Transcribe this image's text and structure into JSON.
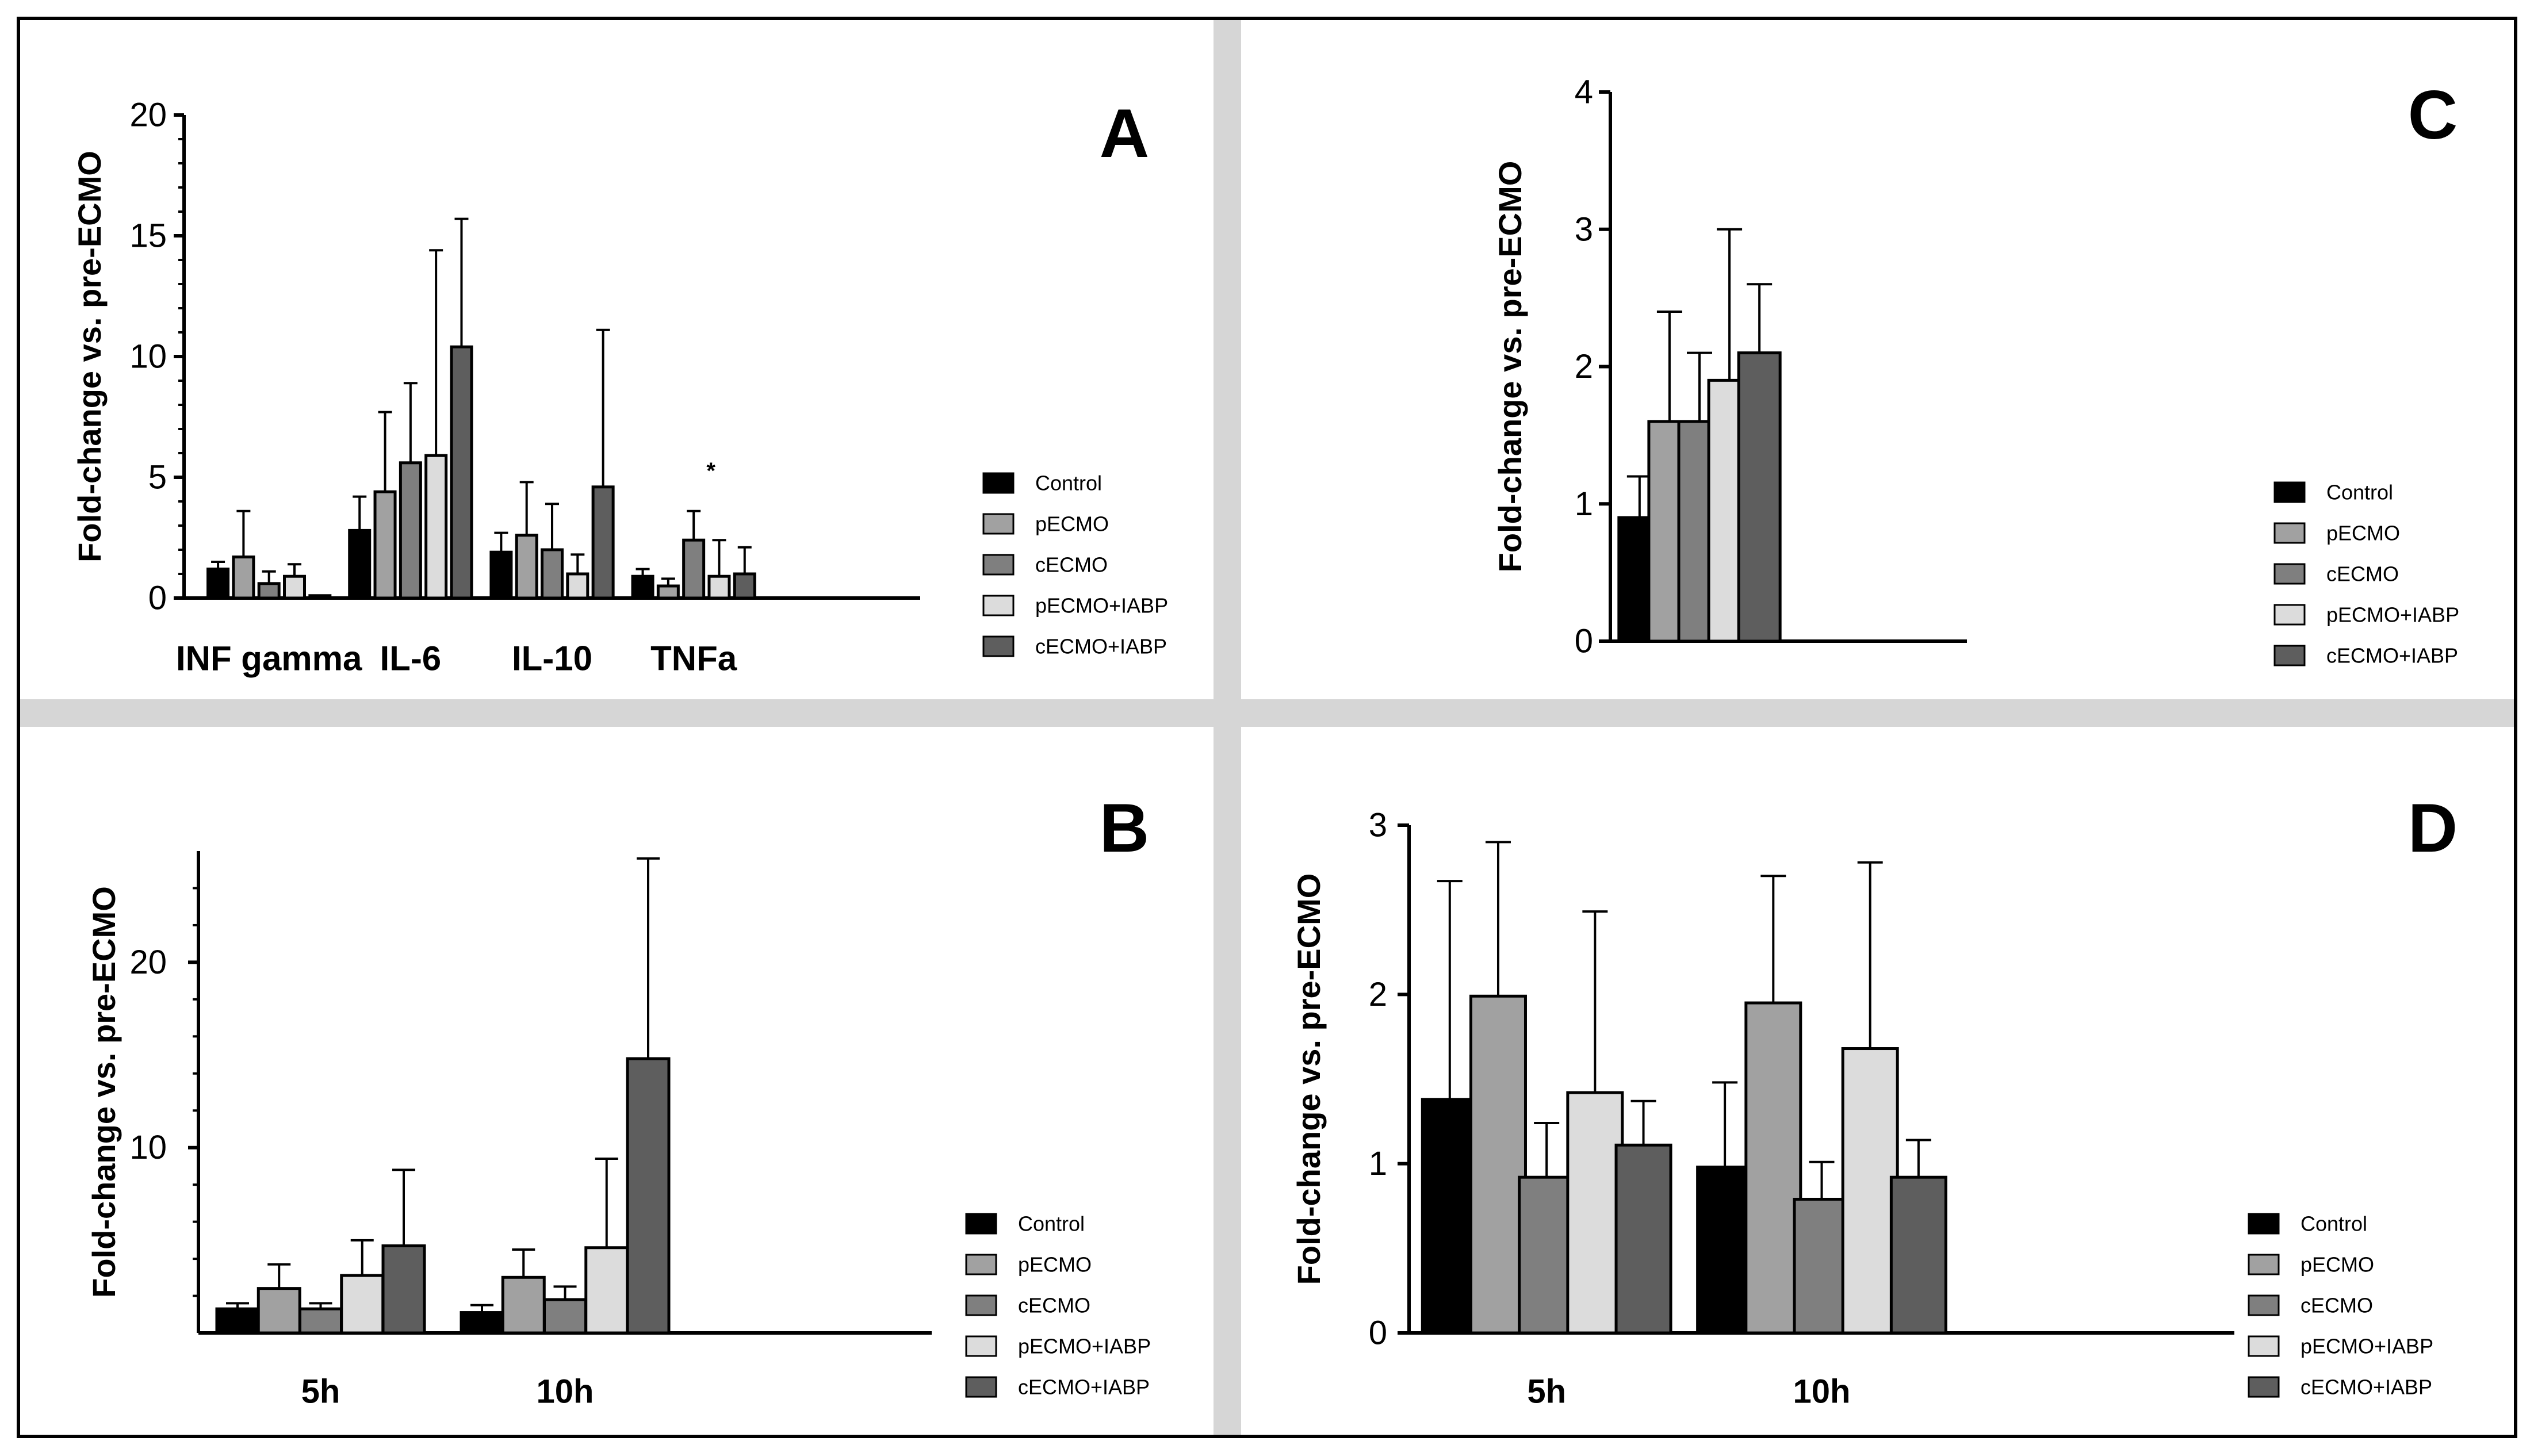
{
  "figure": {
    "series_names": [
      "Control",
      "pECMO",
      "cECMO",
      "pECMO+IABP",
      "cECMO+IABP"
    ],
    "series_colors": [
      "#000000",
      "#a1a1a1",
      "#7f7f7f",
      "#dcdcdc",
      "#5e5e5e"
    ]
  },
  "chart_data": [
    {
      "panel": "A",
      "type": "bar",
      "title": "A",
      "xlabel": "",
      "ylabel": "Fold-change vs. pre-ECMO",
      "ylim": [
        0,
        20
      ],
      "yticks": [
        0,
        5,
        10,
        15,
        20
      ],
      "ytick_labels": [
        "0",
        "5",
        "10",
        "15",
        "20"
      ],
      "categories": [
        "INF gamma",
        "IL-6",
        "IL-10",
        "TNFa"
      ],
      "series": [
        {
          "name": "Control",
          "values": [
            1.2,
            2.8,
            1.9,
            0.9
          ],
          "errors": [
            1.5,
            4.2,
            2.7,
            1.2
          ]
        },
        {
          "name": "pECMO",
          "values": [
            1.7,
            4.4,
            2.6,
            0.5
          ],
          "errors": [
            3.6,
            7.7,
            4.8,
            0.8
          ]
        },
        {
          "name": "cECMO",
          "values": [
            0.6,
            5.6,
            2.0,
            2.4
          ],
          "errors": [
            1.1,
            8.9,
            3.9,
            3.6
          ]
        },
        {
          "name": "pECMO+IABP",
          "values": [
            0.9,
            5.9,
            1.0,
            0.9
          ],
          "errors": [
            1.4,
            14.4,
            1.8,
            2.4
          ]
        },
        {
          "name": "cECMO+IABP",
          "values": [
            0.1,
            10.4,
            4.6,
            1.0
          ],
          "errors": [
            0.1,
            15.7,
            11.1,
            2.1
          ]
        }
      ],
      "annotations": [
        "*"
      ],
      "legend": "right"
    },
    {
      "panel": "B",
      "type": "bar",
      "title": "B",
      "xlabel": "",
      "ylabel": "Fold-change vs. pre-ECMO",
      "ylim": [
        0,
        26
      ],
      "yticks": [
        10,
        20
      ],
      "ytick_labels": [
        "10",
        "20"
      ],
      "categories": [
        "5h",
        "10h"
      ],
      "series": [
        {
          "name": "Control",
          "values": [
            1.3,
            1.1
          ],
          "errors": [
            1.6,
            1.5
          ]
        },
        {
          "name": "pECMO",
          "values": [
            2.4,
            3.0
          ],
          "errors": [
            3.7,
            4.5
          ]
        },
        {
          "name": "cECMO",
          "values": [
            1.3,
            1.8
          ],
          "errors": [
            1.6,
            2.5
          ]
        },
        {
          "name": "pECMO+IABP",
          "values": [
            3.1,
            4.6
          ],
          "errors": [
            5.0,
            9.4
          ]
        },
        {
          "name": "cECMO+IABP",
          "values": [
            4.7,
            14.8
          ],
          "errors": [
            8.8,
            25.6
          ]
        }
      ],
      "legend": "right"
    },
    {
      "panel": "C",
      "type": "bar",
      "title": "C",
      "xlabel": "",
      "ylabel": "Fold-change vs. pre-ECMO",
      "ylim": [
        0,
        4
      ],
      "yticks": [
        0,
        1,
        2,
        3,
        4
      ],
      "ytick_labels": [
        "0",
        "1",
        "2",
        "3",
        "4"
      ],
      "categories": [
        ""
      ],
      "series": [
        {
          "name": "Control",
          "values": [
            0.9
          ],
          "errors": [
            1.2
          ]
        },
        {
          "name": "pECMO",
          "values": [
            1.6
          ],
          "errors": [
            2.4
          ]
        },
        {
          "name": "cECMO",
          "values": [
            1.6
          ],
          "errors": [
            2.1
          ]
        },
        {
          "name": "pECMO+IABP",
          "values": [
            1.9
          ],
          "errors": [
            3.0
          ]
        },
        {
          "name": "cECMO+IABP",
          "values": [
            2.1
          ],
          "errors": [
            2.6
          ]
        }
      ],
      "legend": "right"
    },
    {
      "panel": "D",
      "type": "bar",
      "title": "D",
      "xlabel": "",
      "ylabel": "Fold-change vs. pre-ECMO",
      "ylim": [
        0,
        3
      ],
      "yticks": [
        0,
        1,
        2,
        3
      ],
      "ytick_labels": [
        "0",
        "1",
        "2",
        "3"
      ],
      "categories": [
        "5h",
        "10h"
      ],
      "series": [
        {
          "name": "Control",
          "values": [
            1.38,
            0.98
          ],
          "errors": [
            2.67,
            1.48
          ]
        },
        {
          "name": "pECMO",
          "values": [
            1.99,
            1.95
          ],
          "errors": [
            2.9,
            2.7
          ]
        },
        {
          "name": "cECMO",
          "values": [
            0.92,
            0.79
          ],
          "errors": [
            1.24,
            1.01
          ]
        },
        {
          "name": "pECMO+IABP",
          "values": [
            1.42,
            1.68
          ],
          "errors": [
            2.49,
            2.78
          ]
        },
        {
          "name": "cECMO+IABP",
          "values": [
            1.11,
            0.92
          ],
          "errors": [
            1.37,
            1.14
          ]
        }
      ],
      "legend": "right"
    }
  ]
}
